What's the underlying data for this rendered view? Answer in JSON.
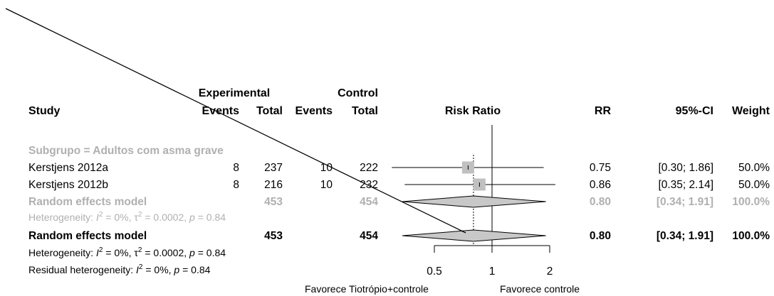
{
  "chart_data": {
    "type": "forest",
    "scale": "log",
    "xlim": [
      0.5,
      2
    ],
    "xticks": [
      {
        "value": 0.5,
        "label": "0.5"
      },
      {
        "value": 1,
        "label": "1"
      },
      {
        "value": 2,
        "label": "2"
      }
    ],
    "null_value": 1,
    "pooled_line_value": 0.8,
    "x_label_left": "Favorece Tiotrópio+controle",
    "x_label_right": "Favorece controle",
    "columns": {
      "study": "Study",
      "experimental": "Experimental",
      "control": "Control",
      "events": "Events",
      "total": "Total",
      "plot": "Risk Ratio",
      "rr": "RR",
      "ci": "95%-CI",
      "weight": "Weight"
    },
    "subgroup_label": "Subgrupo = Adultos com asma grave",
    "studies": [
      {
        "name": "Kerstjens 2012a",
        "e_events": "8",
        "e_total": "237",
        "c_events": "10",
        "c_total": "222",
        "rr": 0.75,
        "lower": 0.3,
        "upper": 1.86,
        "weight": 50.0,
        "rr_text": "0.75",
        "ci_text": "[0.30; 1.86]",
        "weight_text": "50.0%"
      },
      {
        "name": "Kerstjens 2012b",
        "e_events": "8",
        "e_total": "216",
        "c_events": "10",
        "c_total": "232",
        "rr": 0.86,
        "lower": 0.35,
        "upper": 2.14,
        "weight": 50.0,
        "rr_text": "0.86",
        "ci_text": "[0.35; 2.14]",
        "weight_text": "50.0%"
      }
    ],
    "subgroup_model": {
      "name": "Random effects model",
      "e_total": "453",
      "c_total": "454",
      "rr": 0.8,
      "lower": 0.34,
      "upper": 1.91,
      "rr_text": "0.80",
      "ci_text": "[0.34; 1.91]",
      "weight_text": "100.0%"
    },
    "subgroup_heterogeneity": {
      "prefix": "Heterogeneity: ",
      "i2_sym": "I",
      "sup": "2",
      "i2_rest": " = 0%, ",
      "tau_sym": "τ",
      "tau_rest": " = 0.0002, ",
      "p_sym": "p",
      "p_rest": " = 0.84"
    },
    "overall_model": {
      "name": "Random effects model",
      "e_total": "453",
      "c_total": "454",
      "rr": 0.8,
      "lower": 0.34,
      "upper": 1.91,
      "rr_text": "0.80",
      "ci_text": "[0.34; 1.91]",
      "weight_text": "100.0%"
    },
    "overall_heterogeneity": {
      "prefix": "Heterogeneity: ",
      "i2_sym": "I",
      "sup": "2",
      "i2_rest": " = 0%, ",
      "tau_sym": "τ",
      "tau_rest": " = 0.0002, ",
      "p_sym": "p",
      "p_rest": " = 0.84"
    },
    "residual_heterogeneity": {
      "prefix": "Residual heterogeneity: ",
      "i2_sym": "I",
      "sup": "2",
      "i2_rest": " = 0%, ",
      "p_sym": "p",
      "p_rest": " = 0.84"
    },
    "colors": {
      "text": "#000000",
      "grey": "#b0b0b0",
      "box": "#c0c0c0",
      "diamond": "#c8c8c8"
    }
  }
}
